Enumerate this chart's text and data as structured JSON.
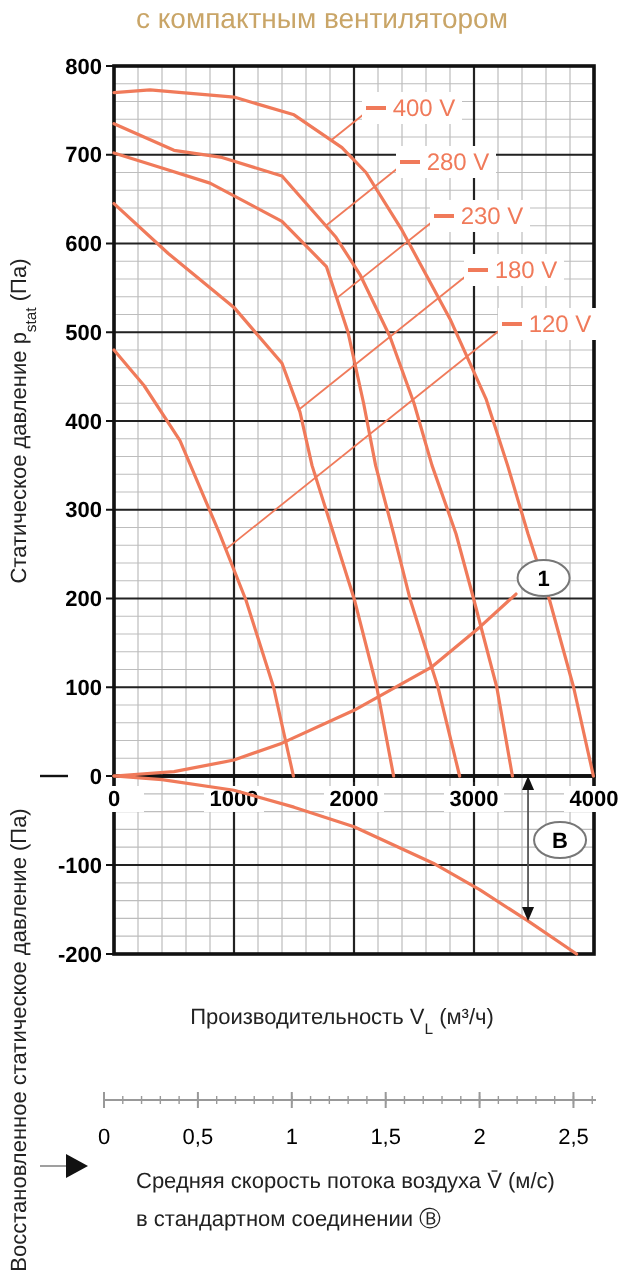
{
  "chart_data": [
    {
      "type": "line",
      "title": "с компактным вентилятором",
      "ylabel": "Статическое давление p$_{stat}$ (Па)",
      "xlim": [
        0,
        4000
      ],
      "xticks": [
        0,
        1000,
        2000,
        3000,
        4000
      ],
      "ylim": [
        0,
        800
      ],
      "yticks": [
        0,
        100,
        200,
        300,
        400,
        500,
        600,
        700,
        800
      ],
      "grid": true,
      "legend": "top right",
      "marker": "none",
      "line_style": "solid",
      "series": [
        {
          "name": "400 V",
          "color": "#f07a5a",
          "x": [
            0,
            300,
            1000,
            1500,
            1900,
            2100,
            2400,
            2800,
            3100,
            3280,
            3450,
            3630,
            3830,
            3995
          ],
          "values": [
            770,
            773,
            765,
            745,
            708,
            680,
            615,
            515,
            425,
            350,
            273,
            198,
            100,
            0
          ]
        },
        {
          "name": "280 V",
          "color": "#f07a5a",
          "x": [
            0,
            500,
            900,
            1400,
            1850,
            2050,
            2300,
            2500,
            2650,
            2850,
            3000,
            3190,
            3320
          ],
          "values": [
            735,
            705,
            697,
            676,
            607,
            565,
            495,
            420,
            350,
            273,
            198,
            100,
            0
          ]
        },
        {
          "name": "230 V",
          "color": "#f07a5a",
          "x": [
            0,
            400,
            800,
            1400,
            1770,
            1950,
            2080,
            2180,
            2330,
            2470,
            2700,
            2880
          ],
          "values": [
            702,
            685,
            668,
            625,
            574,
            500,
            420,
            350,
            273,
            198,
            100,
            0
          ]
        },
        {
          "name": "180 V",
          "color": "#f07a5a",
          "x": [
            0,
            450,
            1000,
            1400,
            1550,
            1650,
            1830,
            2005,
            2190,
            2330
          ],
          "values": [
            645,
            589,
            528,
            465,
            410,
            350,
            273,
            198,
            100,
            0
          ]
        },
        {
          "name": "120 V",
          "color": "#f07a5a",
          "x": [
            0,
            250,
            550,
            880,
            1100,
            1330,
            1495
          ],
          "values": [
            480,
            440,
            378,
            273,
            198,
            100,
            0
          ]
        },
        {
          "color": "#f07a5a",
          "x": [
            0,
            500,
            1000,
            1400,
            2000,
            2650,
            3050,
            3350
          ],
          "values": [
            0,
            5,
            18,
            37,
            74,
            123,
            168,
            205
          ]
        }
      ],
      "annotations": [
        {
          "text": "1",
          "x": 3580,
          "y": 223
        }
      ]
    },
    {
      "type": "line",
      "ylabel": "Восстановленное статическое давление (Па)",
      "xlabel": "Производительность V$_{L}$ (м³/ч)",
      "xlim": [
        0,
        4000
      ],
      "xticks": [
        0,
        1000,
        2000,
        3000,
        4000
      ],
      "ylim": [
        -200,
        0
      ],
      "yticks": [
        -200,
        -100
      ],
      "tick_labels": "y",
      "grid": true,
      "marker": "none",
      "line_style": "solid",
      "x2lim": [
        0,
        2.62
      ],
      "x2ticks": [
        0,
        {
          "value": 0.5,
          "label": "0,5"
        },
        1,
        {
          "value": 1.5,
          "label": "1,5"
        },
        2,
        {
          "value": 2.5,
          "label": "2,5"
        }
      ],
      "x2label": "Средняя скорость потока воздуха V̄ (м/с)\nв стандартном соединении Ⓑ",
      "series": [
        {
          "color": "#f07a5a",
          "x": [
            0,
            400,
            1000,
            1500,
            2000,
            2660,
            3050,
            3440,
            3855
          ],
          "values": [
            0,
            -4,
            -16,
            -35,
            -57,
            -98,
            -128,
            -162,
            -200
          ]
        }
      ],
      "annotations": [
        {
          "text": "B",
          "x": 3717,
          "y": -72
        }
      ]
    }
  ]
}
